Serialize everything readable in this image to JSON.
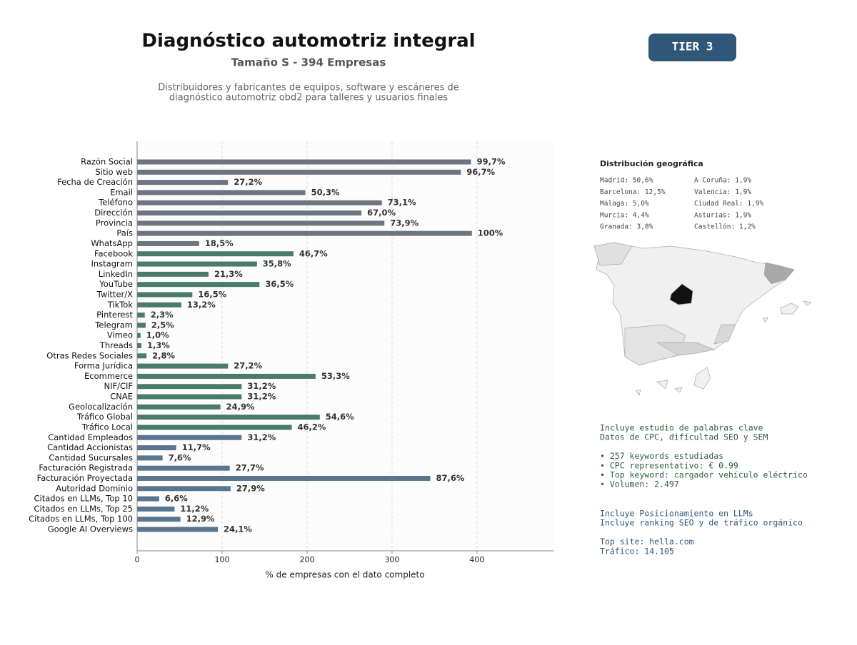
{
  "header": {
    "title": "Diagnóstico automotriz integral",
    "subtitle": "Tamaño S - 394 Empresas",
    "description": [
      "Distribuidores y fabricantes de equipos, software y escáneres de",
      "diagnóstico automotriz obd2 para talleres y usuarios finales"
    ],
    "badge": "TIER 3"
  },
  "chart_data": {
    "type": "barh",
    "xlabel": "% de empresas con el dato completo",
    "categories": [
      "Razón Social",
      "Sitio web",
      "Fecha de Creación",
      "Email",
      "Teléfono",
      "Dirección",
      "Provincia",
      "País",
      "WhatsApp",
      "Facebook",
      "Instagram",
      "LinkedIn",
      "YouTube",
      "Twitter/X",
      "TikTok",
      "Pinterest",
      "Telegram",
      "Vimeo",
      "Threads",
      "Otras Redes Sociales",
      "Forma Jurídica",
      "Ecommerce",
      "NIF/CIF",
      "CNAE",
      "Geolocalización",
      "Tráfico Global",
      "Tráfico Local",
      "Cantidad Empleados",
      "Cantidad Accionistas",
      "Cantidad Sucursales",
      "Facturación Registrada",
      "Facturación Proyectada",
      "Autoridad Dominio",
      "Citados en LLMs, Top 10",
      "Citados en LLMs, Top 25",
      "Citados en LLMs, Top 100",
      "Google AI Overviews"
    ],
    "values": [
      393,
      381,
      107,
      198,
      288,
      264,
      291,
      394,
      73,
      184,
      141,
      84,
      144,
      65,
      52,
      9,
      10,
      4,
      5,
      11,
      107,
      210,
      123,
      123,
      98,
      215,
      182,
      123,
      46,
      30,
      109,
      345,
      110,
      26,
      44,
      51,
      95
    ],
    "value_labels": [
      "99,7%",
      "96,7%",
      "27,2%",
      "50,3%",
      "73,1%",
      "67,0%",
      "73,9%",
      "100%",
      "18,5%",
      "46,7%",
      "35,8%",
      "21,3%",
      "36,5%",
      "16,5%",
      "13,2%",
      "2,3%",
      "2,5%",
      "1,0%",
      "1,3%",
      "2,8%",
      "27,2%",
      "53,3%",
      "31,2%",
      "31,2%",
      "24,9%",
      "54,6%",
      "46,2%",
      "31,2%",
      "11,7%",
      "7,6%",
      "27,7%",
      "87,6%",
      "27,9%",
      "6,6%",
      "11,2%",
      "12,9%",
      "24,1%"
    ],
    "colors": [
      "#6c7580",
      "#6c7580",
      "#6c7580",
      "#6c7580",
      "#6c7580",
      "#6c7580",
      "#6c7580",
      "#6c7580",
      "#6c7580",
      "#4a7a68",
      "#4a7a68",
      "#4a7a68",
      "#4a7a68",
      "#4a7a68",
      "#4a7a68",
      "#4a7a68",
      "#4a7a68",
      "#4a7a68",
      "#4a7a68",
      "#4a7a68",
      "#4a7a68",
      "#4a7a68",
      "#4a7a68",
      "#4a7a68",
      "#4a7a68",
      "#4a7a68",
      "#4a7a68",
      "#5a7590",
      "#5a7590",
      "#5a7590",
      "#5a7590",
      "#5a7590",
      "#5a7590",
      "#5a7590",
      "#5a7590",
      "#5a7590",
      "#5a7590"
    ],
    "xlim": [
      0,
      490
    ],
    "xticks": [
      0,
      100,
      200,
      300,
      400
    ],
    "grid": true
  },
  "geo": {
    "title": "Distribución geográfica",
    "left": [
      "Madrid: 50,6%",
      "Barcelona: 12,5%",
      "Málaga: 5,0%",
      "Murcia: 4,4%",
      "Granada: 3,8%"
    ],
    "right": [
      "A Coruña: 1,9%",
      "Valencia: 1,9%",
      "Ciudad Real: 1,9%",
      "Asturias: 1,9%",
      "Castellón: 1,2%"
    ]
  },
  "keywords": [
    "Incluye estudio de palabras clave",
    "Datos de CPC, dificultad SEO y SEM",
    "",
    "• 257 keywords estudiadas",
    "• CPC representativo: € 0.99",
    "• Top keyword: cargador vehículo eléctrico",
    "• Volumen: 2.497"
  ],
  "llm": [
    "Incluye Posicionamiento en LLMs",
    "Incluye ranking SEO y de tráfico orgánico",
    "",
    "Top site: hella.com",
    "Tráfico: 14.105"
  ]
}
